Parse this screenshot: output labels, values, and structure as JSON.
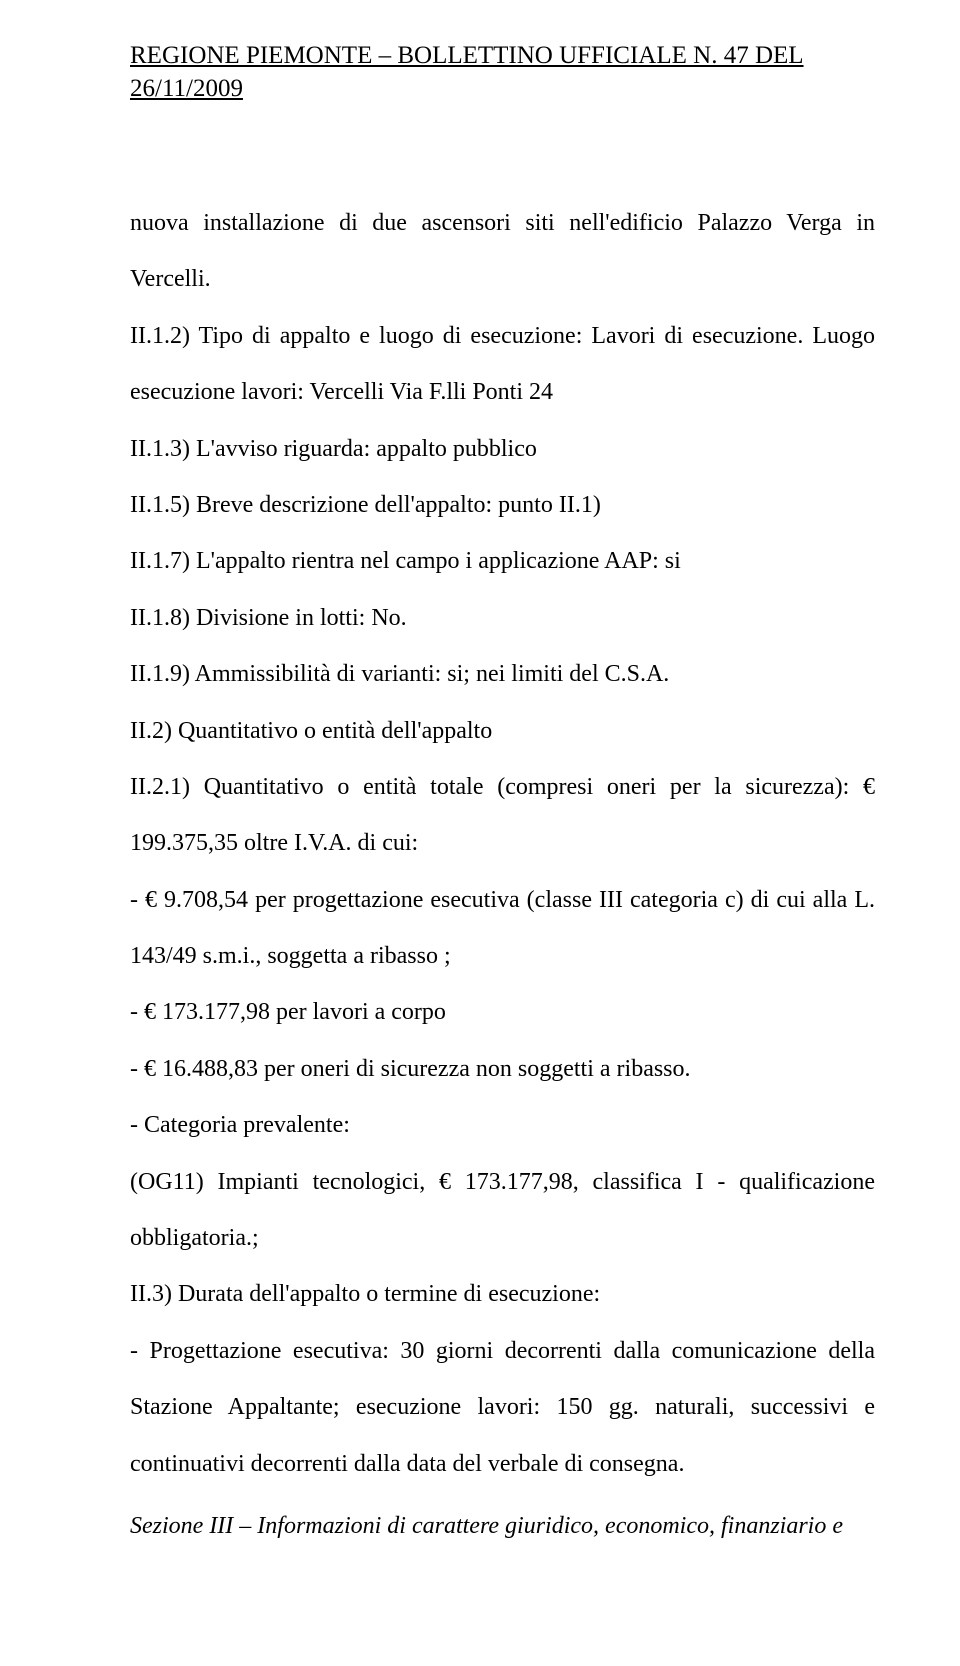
{
  "header": "REGIONE PIEMONTE – BOLLETTINO UFFICIALE N. 47 DEL 26/11/2009",
  "lines": {
    "l1": "nuova installazione di due ascensori siti nell'edificio Palazzo Verga in Vercelli.",
    "l2": "II.1.2) Tipo di appalto e luogo di esecuzione: Lavori di esecuzione. Luogo esecuzione lavori: Vercelli Via F.lli Ponti 24",
    "l3": "II.1.3) L'avviso riguarda: appalto pubblico",
    "l4": "II.1.5) Breve descrizione dell'appalto: punto II.1)",
    "l5": "II.1.7) L'appalto rientra nel campo i applicazione AAP: si",
    "l6": "II.1.8) Divisione in lotti: No.",
    "l7": "II.1.9) Ammissibilità di varianti: si; nei limiti del C.S.A.",
    "l8": "II.2) Quantitativo o entità dell'appalto",
    "l9": "II.2.1) Quantitativo o entità totale (compresi oneri per la sicurezza): € 199.375,35 oltre I.V.A. di cui:",
    "l10": "- € 9.708,54 per progettazione esecutiva (classe III categoria c) di cui alla L. 143/49 s.m.i., soggetta a ribasso ;",
    "l11": "- € 173.177,98 per lavori a corpo",
    "l12": "- € 16.488,83 per oneri di sicurezza non soggetti a ribasso.",
    "l13": "- Categoria prevalente:",
    "l14": "(OG11) Impianti tecnologici, € 173.177,98, classifica I - qualificazione obbligatoria.;",
    "l15": "II.3) Durata dell'appalto o termine di esecuzione:",
    "l16": "- Progettazione esecutiva: 30 giorni decorrenti dalla comunicazione della Stazione Appaltante; esecuzione lavori: 150 gg. naturali, successivi e continuativi decorrenti dalla data del verbale di consegna.",
    "l17": "Sezione III – Informazioni di carattere giuridico, economico, finanziario e"
  }
}
